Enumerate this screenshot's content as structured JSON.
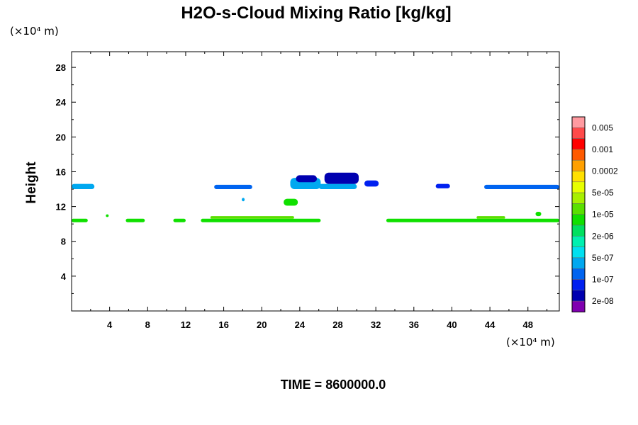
{
  "chart_data": {
    "type": "heatmap",
    "title": "H2O-s-Cloud Mixing Ratio [kg/kg]",
    "ylabel": "Height",
    "y_unit": "(×10⁴ m)",
    "x_unit": "(×10⁴ m)",
    "xlim": [
      0,
      51.3
    ],
    "ylim": [
      0,
      29.8
    ],
    "x_ticks": [
      4,
      8,
      12,
      16,
      20,
      24,
      28,
      32,
      36,
      40,
      44,
      48
    ],
    "y_ticks": [
      4,
      8,
      12,
      16,
      20,
      24,
      28
    ],
    "time_label": "TIME = 8600000.0",
    "legend": {
      "colors": [
        "#ff9aa0",
        "#ff4a4a",
        "#ff0000",
        "#ff5a00",
        "#ffa000",
        "#ffe000",
        "#e8ff00",
        "#a8f000",
        "#5ae000",
        "#10e000",
        "#00e060",
        "#00f0b0",
        "#00e0f0",
        "#00a8f0",
        "#0064f0",
        "#0020f0",
        "#0000b0",
        "#8000b0"
      ],
      "labels": [
        "0.005",
        "0.001",
        "0.0002",
        "5e-05",
        "1e-05",
        "2e-06",
        "5e-07",
        "1e-07",
        "2e-08"
      ]
    },
    "regions": [
      {
        "level": 13,
        "x": [
          0,
          2.4
        ],
        "y": [
          14.0,
          14.6
        ]
      },
      {
        "level": 14,
        "x": [
          15.0,
          19.0
        ],
        "y": [
          14.0,
          14.5
        ]
      },
      {
        "level": 13,
        "x": [
          23.0,
          26.2
        ],
        "y": [
          14.0,
          15.3
        ]
      },
      {
        "level": 16,
        "x": [
          23.6,
          25.8
        ],
        "y": [
          14.8,
          15.6
        ]
      },
      {
        "level": 13,
        "x": [
          26.0,
          30.0
        ],
        "y": [
          14.0,
          14.6
        ]
      },
      {
        "level": 16,
        "x": [
          26.6,
          30.2
        ],
        "y": [
          14.6,
          15.9
        ]
      },
      {
        "level": 15,
        "x": [
          30.8,
          32.3
        ],
        "y": [
          14.3,
          15.0
        ]
      },
      {
        "level": 15,
        "x": [
          38.3,
          39.8
        ],
        "y": [
          14.1,
          14.6
        ]
      },
      {
        "level": 14,
        "x": [
          43.4,
          51.3
        ],
        "y": [
          14.0,
          14.5
        ]
      },
      {
        "level": 9,
        "x": [
          22.3,
          23.8
        ],
        "y": [
          12.1,
          12.9
        ]
      },
      {
        "level": 13,
        "x": [
          17.9,
          18.2
        ],
        "y": [
          12.6,
          13.0
        ]
      },
      {
        "level": 9,
        "x": [
          0,
          1.7
        ],
        "y": [
          10.2,
          10.6
        ]
      },
      {
        "level": 9,
        "x": [
          3.6,
          3.9
        ],
        "y": [
          10.8,
          11.1
        ]
      },
      {
        "level": 9,
        "x": [
          5.7,
          7.7
        ],
        "y": [
          10.2,
          10.6
        ]
      },
      {
        "level": 9,
        "x": [
          10.7,
          12.0
        ],
        "y": [
          10.2,
          10.6
        ]
      },
      {
        "level": 9,
        "x": [
          13.6,
          26.2
        ],
        "y": [
          10.2,
          10.6
        ]
      },
      {
        "level": 8,
        "x": [
          14.6,
          23.4
        ],
        "y": [
          10.6,
          10.9
        ]
      },
      {
        "level": 9,
        "x": [
          33.1,
          51.3
        ],
        "y": [
          10.2,
          10.6
        ]
      },
      {
        "level": 8,
        "x": [
          42.6,
          45.6
        ],
        "y": [
          10.6,
          10.9
        ]
      },
      {
        "level": 9,
        "x": [
          48.8,
          49.4
        ],
        "y": [
          10.9,
          11.4
        ]
      }
    ]
  }
}
